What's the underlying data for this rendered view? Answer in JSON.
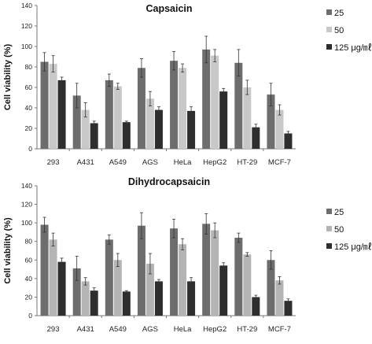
{
  "chart_data": [
    {
      "type": "bar",
      "title": "Capsaicin",
      "ylabel": "Cell viability (%)",
      "xlabel": "",
      "ylim": [
        0,
        140
      ],
      "yticks": [
        0,
        20,
        40,
        60,
        80,
        100,
        120,
        140
      ],
      "grid": false,
      "legend_position": "right",
      "categories": [
        "293",
        "A431",
        "A549",
        "AGS",
        "HeLa",
        "HepG2",
        "HT-29",
        "MCF-7"
      ],
      "series": [
        {
          "name": "25",
          "color": "#6d6d6d",
          "values": [
            85,
            52,
            67,
            79,
            86,
            97,
            84,
            53
          ],
          "errors": [
            9,
            12,
            6,
            9,
            9,
            13,
            13,
            11
          ]
        },
        {
          "name": "50",
          "color": "#c8c8c8",
          "values": [
            83,
            38,
            61,
            49,
            79,
            91,
            60,
            38
          ],
          "errors": [
            8,
            7,
            3,
            7,
            4,
            6,
            7,
            5
          ]
        },
        {
          "name": "125 μg/㎖",
          "color": "#2e2e2e",
          "values": [
            67,
            25,
            26,
            38,
            37,
            56,
            21,
            15
          ],
          "errors": [
            3,
            2,
            1,
            3,
            4,
            3,
            3,
            2
          ]
        }
      ]
    },
    {
      "type": "bar",
      "title": "Dihydrocapsaicin",
      "ylabel": "Cell viability (%)",
      "xlabel": "",
      "ylim": [
        0,
        140
      ],
      "yticks": [
        0,
        20,
        40,
        60,
        80,
        100,
        120,
        140
      ],
      "grid": false,
      "legend_position": "right",
      "categories": [
        "293",
        "A431",
        "A549",
        "AGS",
        "HeLa",
        "HepG2",
        "HT-29",
        "MCF-7"
      ],
      "series": [
        {
          "name": "25",
          "color": "#6d6d6d",
          "values": [
            98,
            51,
            82,
            97,
            94,
            99,
            84,
            60
          ],
          "errors": [
            8,
            13,
            5,
            14,
            10,
            11,
            5,
            10
          ]
        },
        {
          "name": "50",
          "color": "#b4b4b4",
          "values": [
            82,
            37,
            60,
            56,
            77,
            92,
            66,
            38
          ],
          "errors": [
            7,
            4,
            7,
            11,
            6,
            8,
            2,
            4
          ]
        },
        {
          "name": "125 μg/㎖",
          "color": "#2e2e2e",
          "values": [
            58,
            27,
            26,
            37,
            37,
            54,
            20,
            16
          ],
          "errors": [
            4,
            3,
            1,
            2,
            4,
            3,
            2,
            2
          ]
        }
      ]
    }
  ]
}
